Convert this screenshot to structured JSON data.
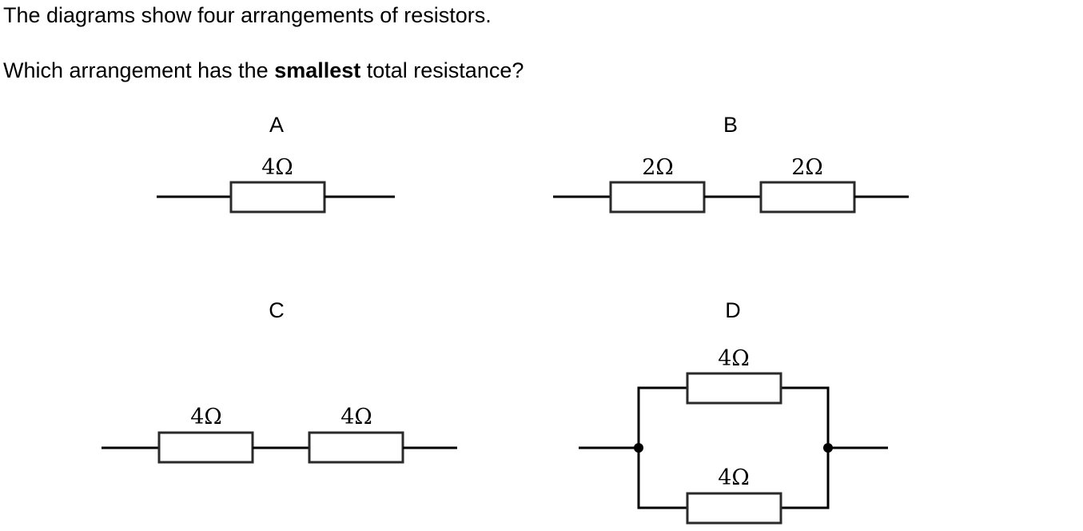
{
  "question": {
    "intro": "The diagrams show four arrangements of resistors.",
    "prompt_before": "Which arrangement has the ",
    "prompt_bold": "smallest",
    "prompt_after": " total resistance?"
  },
  "arrangements": {
    "A": {
      "label": "A",
      "connection": "single",
      "resistors": [
        "4Ω"
      ]
    },
    "B": {
      "label": "B",
      "connection": "series",
      "resistors": [
        "2Ω",
        "2Ω"
      ]
    },
    "C": {
      "label": "C",
      "connection": "series",
      "resistors": [
        "4Ω",
        "4Ω"
      ]
    },
    "D": {
      "label": "D",
      "connection": "parallel",
      "resistors": [
        "4Ω",
        "4Ω"
      ]
    }
  }
}
